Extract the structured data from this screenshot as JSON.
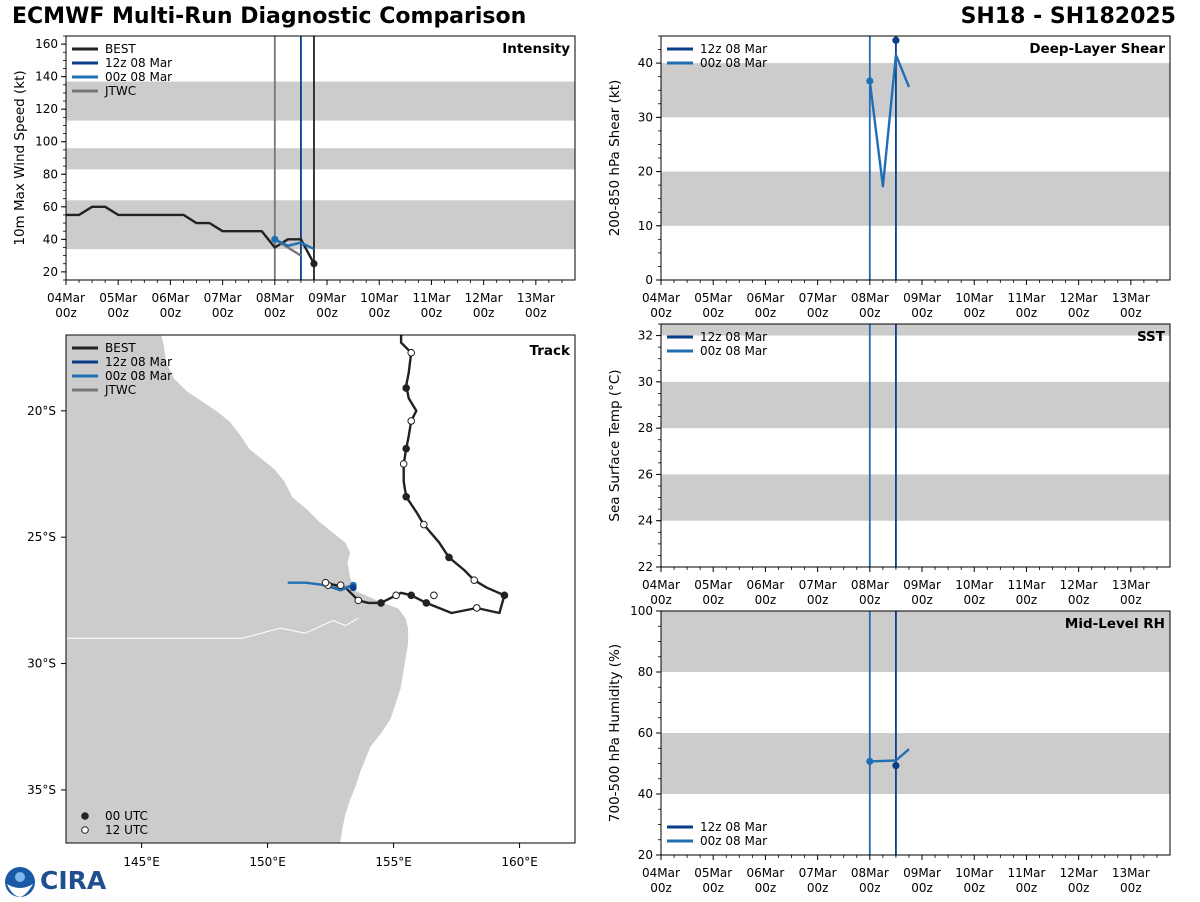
{
  "header": {
    "title": "ECMWF Multi-Run Diagnostic Comparison",
    "storm": "SH18 - SH182025"
  },
  "logo": {
    "text": "CIRA"
  },
  "colors": {
    "best": "#222222",
    "run12z": "#0a3d8a",
    "run00z": "#1f6fb5",
    "jtwc": "#777777",
    "band": "#cccccc",
    "land": "#cccccc",
    "coast": "#ffffff"
  },
  "time_ticks": [
    {
      "d": "04Mar",
      "h": "00z"
    },
    {
      "d": "05Mar",
      "h": "00z"
    },
    {
      "d": "06Mar",
      "h": "00z"
    },
    {
      "d": "07Mar",
      "h": "00z"
    },
    {
      "d": "08Mar",
      "h": "00z"
    },
    {
      "d": "09Mar",
      "h": "00z"
    },
    {
      "d": "10Mar",
      "h": "00z"
    },
    {
      "d": "11Mar",
      "h": "00z"
    },
    {
      "d": "12Mar",
      "h": "00z"
    },
    {
      "d": "13Mar",
      "h": "00z"
    }
  ],
  "chart_data": [
    {
      "id": "intensity",
      "type": "line",
      "title": "Intensity",
      "xlabel": "",
      "ylabel": "10m Max Wind Speed (kt)",
      "ylim": [
        15,
        165
      ],
      "yticks": [
        20,
        40,
        60,
        80,
        100,
        120,
        140,
        160
      ],
      "xlim_days": [
        0,
        9.75
      ],
      "bands": [
        [
          34,
          64
        ],
        [
          83,
          96
        ],
        [
          113,
          137
        ]
      ],
      "vlines": [
        {
          "x": 4.0,
          "series": "jtwc"
        },
        {
          "x": 4.5,
          "series": "run12z"
        },
        {
          "x": 4.75,
          "series": "best"
        }
      ],
      "legend": [
        {
          "key": "best",
          "label": "BEST"
        },
        {
          "key": "run12z",
          "label": "12z 08 Mar"
        },
        {
          "key": "run00z",
          "label": "00z 08 Mar"
        },
        {
          "key": "jtwc",
          "label": "JTWC"
        }
      ],
      "series": [
        {
          "key": "best",
          "x": [
            0,
            0.25,
            0.5,
            0.75,
            1,
            1.25,
            1.5,
            1.75,
            2,
            2.25,
            2.5,
            2.75,
            3,
            3.25,
            3.5,
            3.75,
            4,
            4.25,
            4.5,
            4.75
          ],
          "y": [
            55,
            55,
            60,
            60,
            55,
            55,
            55,
            55,
            55,
            55,
            50,
            50,
            45,
            45,
            45,
            45,
            35,
            40,
            40,
            25
          ],
          "markers": [
            {
              "x": 4.75,
              "y": 25,
              "fill": "dark"
            }
          ]
        },
        {
          "key": "jtwc",
          "x": [
            4.0,
            4.25,
            4.5
          ],
          "y": [
            40,
            35,
            30
          ]
        },
        {
          "key": "run00z",
          "x": [
            4.0,
            4.25,
            4.5,
            4.75
          ],
          "y": [
            40,
            36,
            38,
            34
          ],
          "markers": [
            {
              "x": 4.0,
              "y": 40,
              "fill": "solid"
            }
          ]
        }
      ]
    },
    {
      "id": "shear",
      "type": "line",
      "title": "Deep-Layer Shear",
      "xlabel": "",
      "ylabel": "200-850 hPa Shear (kt)",
      "ylim": [
        0,
        45
      ],
      "yticks": [
        0,
        10,
        20,
        30,
        40
      ],
      "xlim_days": [
        0,
        9.75
      ],
      "bands": [
        [
          10,
          20
        ],
        [
          30,
          40
        ]
      ],
      "vlines": [
        {
          "x": 4.0,
          "series": "run00z"
        },
        {
          "x": 4.5,
          "series": "run12z"
        }
      ],
      "legend": [
        {
          "key": "run12z",
          "label": "12z 08 Mar"
        },
        {
          "key": "run00z",
          "label": "00z 08 Mar"
        }
      ],
      "series": [
        {
          "key": "run00z",
          "x": [
            4.0,
            4.25,
            4.5,
            4.75
          ],
          "y": [
            36.7,
            17.3,
            41.5,
            35.6
          ],
          "markers": [
            {
              "x": 4.0,
              "y": 36.7,
              "fill": "solid"
            }
          ]
        },
        {
          "key": "run12z",
          "x": [
            4.5
          ],
          "y": [
            44.2
          ],
          "markers": [
            {
              "x": 4.5,
              "y": 44.2,
              "fill": "solid"
            }
          ]
        }
      ]
    },
    {
      "id": "sst",
      "type": "line",
      "title": "SST",
      "xlabel": "",
      "ylabel": "Sea Surface Temp (°C)",
      "ylim": [
        22,
        32.5
      ],
      "yticks": [
        22,
        24,
        26,
        28,
        30,
        32
      ],
      "xlim_days": [
        0,
        9.75
      ],
      "bands": [
        [
          24,
          26
        ],
        [
          28,
          30
        ],
        [
          32,
          32.5
        ]
      ],
      "vlines": [
        {
          "x": 4.0,
          "series": "run00z"
        },
        {
          "x": 4.5,
          "series": "run12z"
        }
      ],
      "legend": [
        {
          "key": "run12z",
          "label": "12z 08 Mar"
        },
        {
          "key": "run00z",
          "label": "00z 08 Mar"
        }
      ],
      "series": []
    },
    {
      "id": "rh",
      "type": "line",
      "title": "Mid-Level RH",
      "xlabel": "",
      "ylabel": "700-500 hPa Humidity (%)",
      "ylim": [
        20,
        100
      ],
      "yticks": [
        20,
        40,
        60,
        80,
        100
      ],
      "xlim_days": [
        0,
        9.75
      ],
      "bands": [
        [
          40,
          60
        ],
        [
          80,
          100
        ]
      ],
      "vlines": [
        {
          "x": 4.0,
          "series": "run00z"
        },
        {
          "x": 4.5,
          "series": "run12z"
        }
      ],
      "legend": [
        {
          "key": "run12z",
          "label": "12z 08 Mar"
        },
        {
          "key": "run00z",
          "label": "00z 08 Mar"
        }
      ],
      "legend_pos": "bottom-left",
      "series": [
        {
          "key": "run00z",
          "x": [
            4.0,
            4.5,
            4.75
          ],
          "y": [
            50.7,
            51.0,
            54.7
          ],
          "markers": [
            {
              "x": 4.0,
              "y": 50.7,
              "fill": "solid"
            }
          ]
        },
        {
          "key": "run12z",
          "x": [
            4.5
          ],
          "y": [
            49.3
          ],
          "markers": [
            {
              "x": 4.5,
              "y": 49.3,
              "fill": "solid"
            }
          ]
        }
      ]
    },
    {
      "id": "track",
      "type": "map",
      "title": "Track",
      "lon_range": [
        142,
        162.2
      ],
      "lat_range": [
        -37.1,
        -17.0
      ],
      "lon_ticks": [
        {
          "v": 145,
          "label": "145°E"
        },
        {
          "v": 150,
          "label": "150°E"
        },
        {
          "v": 155,
          "label": "155°E"
        },
        {
          "v": 160,
          "label": "160°E"
        }
      ],
      "lat_ticks": [
        {
          "v": -20,
          "label": "20°S"
        },
        {
          "v": -25,
          "label": "25°S"
        },
        {
          "v": -30,
          "label": "30°S"
        },
        {
          "v": -35,
          "label": "35°S"
        }
      ],
      "legend": [
        {
          "key": "best",
          "label": "BEST"
        },
        {
          "key": "run12z",
          "label": "12z 08 Mar"
        },
        {
          "key": "run00z",
          "label": "00z 08 Mar"
        },
        {
          "key": "jtwc",
          "label": "JTWC"
        }
      ],
      "marker_legend": [
        {
          "fill": "dark",
          "label": "00 UTC"
        },
        {
          "fill": "open",
          "label": "12 UTC"
        }
      ],
      "best_track": [
        [
          155.3,
          -17.0
        ],
        [
          155.3,
          -17.3
        ],
        [
          155.7,
          -17.7
        ],
        [
          155.6,
          -18.5
        ],
        [
          155.5,
          -19.0
        ],
        [
          155.6,
          -19.5
        ],
        [
          155.9,
          -20.0
        ],
        [
          155.7,
          -20.4
        ],
        [
          155.6,
          -21.0
        ],
        [
          155.5,
          -21.5
        ],
        [
          155.4,
          -22.1
        ],
        [
          155.4,
          -22.8
        ],
        [
          155.5,
          -23.4
        ],
        [
          155.9,
          -24.0
        ],
        [
          156.2,
          -24.5
        ],
        [
          156.8,
          -25.2
        ],
        [
          157.2,
          -25.8
        ],
        [
          157.8,
          -26.3
        ],
        [
          158.2,
          -26.7
        ],
        [
          158.7,
          -27.0
        ],
        [
          159.4,
          -27.3
        ],
        [
          159.2,
          -28.0
        ],
        [
          158.3,
          -27.8
        ],
        [
          157.3,
          -28.0
        ],
        [
          156.3,
          -27.6
        ],
        [
          155.7,
          -27.3
        ],
        [
          155.3,
          -27.2
        ],
        [
          155.1,
          -27.3
        ],
        [
          154.5,
          -27.6
        ],
        [
          154.0,
          -27.6
        ],
        [
          153.6,
          -27.5
        ],
        [
          153.3,
          -27.2
        ],
        [
          153.1,
          -27.0
        ],
        [
          152.7,
          -26.9
        ],
        [
          152.3,
          -26.8
        ]
      ],
      "best_markers": [
        {
          "lon": 155.7,
          "lat": -17.7,
          "fill": "open"
        },
        {
          "lon": 155.5,
          "lat": -19.1,
          "fill": "dark"
        },
        {
          "lon": 155.7,
          "lat": -20.4,
          "fill": "open"
        },
        {
          "lon": 155.5,
          "lat": -21.5,
          "fill": "dark"
        },
        {
          "lon": 155.4,
          "lat": -22.1,
          "fill": "open"
        },
        {
          "lon": 155.5,
          "lat": -23.4,
          "fill": "dark"
        },
        {
          "lon": 156.2,
          "lat": -24.5,
          "fill": "open"
        },
        {
          "lon": 157.2,
          "lat": -25.8,
          "fill": "dark"
        },
        {
          "lon": 158.2,
          "lat": -26.7,
          "fill": "open"
        },
        {
          "lon": 159.4,
          "lat": -27.3,
          "fill": "dark"
        },
        {
          "lon": 158.3,
          "lat": -27.8,
          "fill": "open"
        },
        {
          "lon": 156.3,
          "lat": -27.6,
          "fill": "dark"
        },
        {
          "lon": 156.6,
          "lat": -27.3,
          "fill": "open"
        },
        {
          "lon": 155.7,
          "lat": -27.3,
          "fill": "dark"
        },
        {
          "lon": 155.1,
          "lat": -27.3,
          "fill": "open"
        },
        {
          "lon": 154.5,
          "lat": -27.6,
          "fill": "dark"
        },
        {
          "lon": 153.6,
          "lat": -27.5,
          "fill": "open"
        },
        {
          "lon": 152.9,
          "lat": -26.9,
          "fill": "open"
        },
        {
          "lon": 152.4,
          "lat": -26.9,
          "fill": "open"
        },
        {
          "lon": 152.3,
          "lat": -26.8,
          "fill": "open"
        }
      ],
      "jtwc_track": [
        [
          153.4,
          -26.9
        ],
        [
          153.0,
          -27.0
        ],
        [
          152.6,
          -27.0
        ],
        [
          152.2,
          -26.9
        ]
      ],
      "run00z_track": [
        [
          153.4,
          -26.9
        ],
        [
          152.9,
          -27.1
        ],
        [
          152.3,
          -26.9
        ],
        [
          151.5,
          -26.8
        ],
        [
          150.8,
          -26.8
        ]
      ],
      "run12z_track": [
        [
          153.4,
          -27.0
        ],
        [
          153.3,
          -26.9
        ]
      ],
      "run_markers": [
        {
          "lon": 153.4,
          "lat": -26.9,
          "key": "run00z"
        },
        {
          "lon": 153.4,
          "lat": -27.0,
          "key": "run12z"
        }
      ],
      "coast": [
        [
          152.9,
          -37.1
        ],
        [
          153.0,
          -36.5
        ],
        [
          153.1,
          -36.0
        ],
        [
          153.3,
          -35.4
        ],
        [
          153.5,
          -34.9
        ],
        [
          153.7,
          -34.3
        ],
        [
          153.9,
          -33.8
        ],
        [
          154.1,
          -33.3
        ],
        [
          154.5,
          -32.8
        ],
        [
          154.9,
          -32.2
        ],
        [
          155.1,
          -31.6
        ],
        [
          155.3,
          -31.0
        ],
        [
          155.4,
          -30.4
        ],
        [
          155.5,
          -29.8
        ],
        [
          155.6,
          -29.2
        ],
        [
          155.6,
          -28.6
        ],
        [
          155.5,
          -28.2
        ],
        [
          155.2,
          -27.8
        ],
        [
          154.4,
          -27.5
        ],
        [
          153.5,
          -27.1
        ],
        [
          153.3,
          -26.6
        ],
        [
          153.2,
          -26.0
        ],
        [
          153.3,
          -25.6
        ],
        [
          153.1,
          -25.2
        ],
        [
          152.6,
          -24.8
        ],
        [
          152.1,
          -24.4
        ],
        [
          151.6,
          -23.9
        ],
        [
          151.0,
          -23.4
        ],
        [
          150.7,
          -22.8
        ],
        [
          150.3,
          -22.3
        ],
        [
          149.8,
          -21.9
        ],
        [
          149.3,
          -21.5
        ],
        [
          148.9,
          -20.9
        ],
        [
          148.5,
          -20.4
        ],
        [
          148.0,
          -20.0
        ],
        [
          147.4,
          -19.6
        ],
        [
          146.8,
          -19.2
        ],
        [
          146.3,
          -18.7
        ],
        [
          146.0,
          -18.1
        ],
        [
          145.9,
          -17.4
        ],
        [
          145.8,
          -17.0
        ]
      ],
      "border": [
        [
          142.0,
          -29.0
        ],
        [
          149.0,
          -29.0
        ],
        [
          150.5,
          -28.6
        ],
        [
          151.5,
          -28.8
        ],
        [
          152.6,
          -28.3
        ],
        [
          153.1,
          -28.5
        ],
        [
          153.6,
          -28.2
        ]
      ]
    }
  ]
}
